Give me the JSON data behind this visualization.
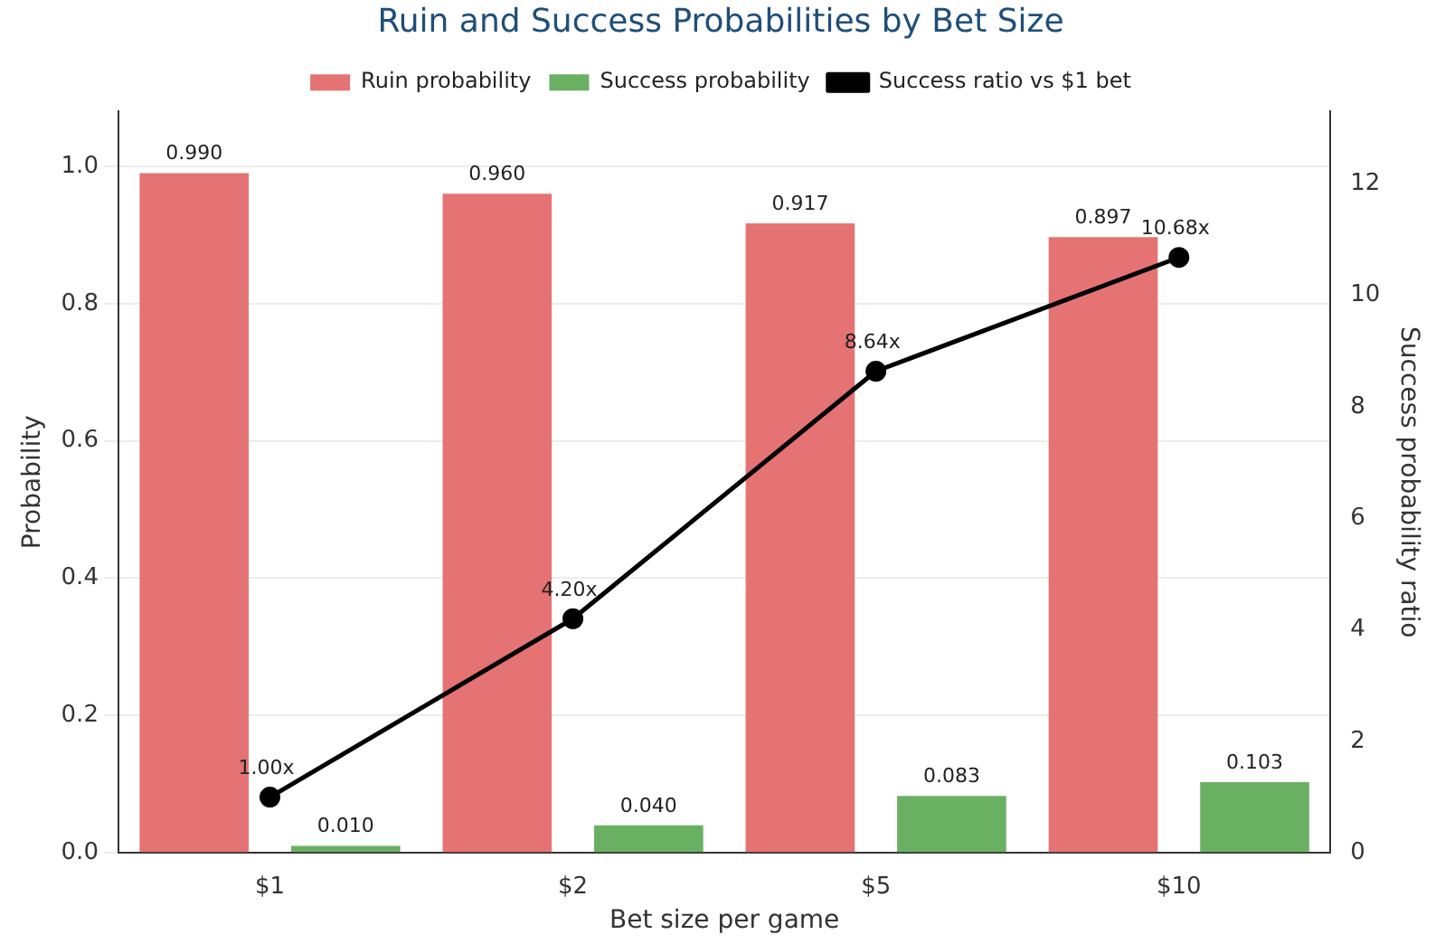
{
  "chart_data": {
    "type": "bar",
    "title": "Ruin and Success Probabilities by Bet Size",
    "xlabel": "Bet size per game",
    "ylabel": "Probability",
    "y2label": "Success probability ratio",
    "categories": [
      "$1",
      "$2",
      "$5",
      "$10"
    ],
    "series": [
      {
        "name": "Ruin probability",
        "color": "#e57373",
        "values": [
          0.99,
          0.96,
          0.917,
          0.897
        ],
        "value_labels": [
          "0.990",
          "0.960",
          "0.917",
          "0.897"
        ]
      },
      {
        "name": "Success probability",
        "color": "#6ab063",
        "values": [
          0.01,
          0.04,
          0.083,
          0.103
        ],
        "value_labels": [
          "0.010",
          "0.040",
          "0.083",
          "0.103"
        ]
      },
      {
        "name": "Success ratio vs $1 bet",
        "type": "line",
        "axis": "y2",
        "color": "#000000",
        "values": [
          1.0,
          4.2,
          8.64,
          10.68
        ],
        "value_labels": [
          "1.00x",
          "4.20x",
          "8.64x",
          "10.68x"
        ]
      }
    ],
    "ylim": [
      0,
      1.08
    ],
    "yticks": [
      {
        "value": 0,
        "label": "0.0"
      },
      0.2,
      0.4,
      0.6,
      0.8,
      {
        "value": 1,
        "label": "1.0"
      }
    ],
    "y2lim": [
      0,
      13.3
    ],
    "y2ticks": [
      0,
      2,
      4,
      6,
      8,
      10,
      12
    ],
    "grid": "y",
    "legend": "top",
    "marker": "circle",
    "line_style": "solid"
  }
}
